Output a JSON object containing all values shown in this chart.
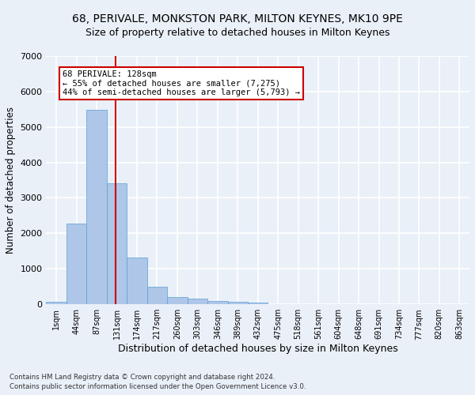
{
  "title1": "68, PERIVALE, MONKSTON PARK, MILTON KEYNES, MK10 9PE",
  "title2": "Size of property relative to detached houses in Milton Keynes",
  "xlabel": "Distribution of detached houses by size in Milton Keynes",
  "ylabel": "Number of detached properties",
  "footnote1": "Contains HM Land Registry data © Crown copyright and database right 2024.",
  "footnote2": "Contains public sector information licensed under the Open Government Licence v3.0.",
  "bin_labels": [
    "1sqm",
    "44sqm",
    "87sqm",
    "131sqm",
    "174sqm",
    "217sqm",
    "260sqm",
    "303sqm",
    "346sqm",
    "389sqm",
    "432sqm",
    "475sqm",
    "518sqm",
    "561sqm",
    "604sqm",
    "648sqm",
    "691sqm",
    "734sqm",
    "777sqm",
    "820sqm",
    "863sqm"
  ],
  "bar_values": [
    80,
    2280,
    5480,
    3420,
    1310,
    490,
    200,
    160,
    90,
    80,
    55,
    10,
    0,
    0,
    0,
    0,
    0,
    0,
    0,
    0,
    0
  ],
  "bar_color": "#aec6e8",
  "bar_edge_color": "#5a9fd4",
  "bar_width": 1.0,
  "vline_x": 2.93,
  "vline_color": "#cc0000",
  "annotation_text": "68 PERIVALE: 128sqm\n← 55% of detached houses are smaller (7,275)\n44% of semi-detached houses are larger (5,793) →",
  "annotation_box_color": "#ffffff",
  "annotation_box_edge": "#cc0000",
  "ylim": [
    0,
    7000
  ],
  "yticks": [
    0,
    1000,
    2000,
    3000,
    4000,
    5000,
    6000,
    7000
  ],
  "bg_color": "#eaf0f8",
  "plot_bg_color": "#eaf0f8",
  "grid_color": "#ffffff",
  "title1_fontsize": 10,
  "title2_fontsize": 9,
  "xlabel_fontsize": 9,
  "ylabel_fontsize": 8.5
}
